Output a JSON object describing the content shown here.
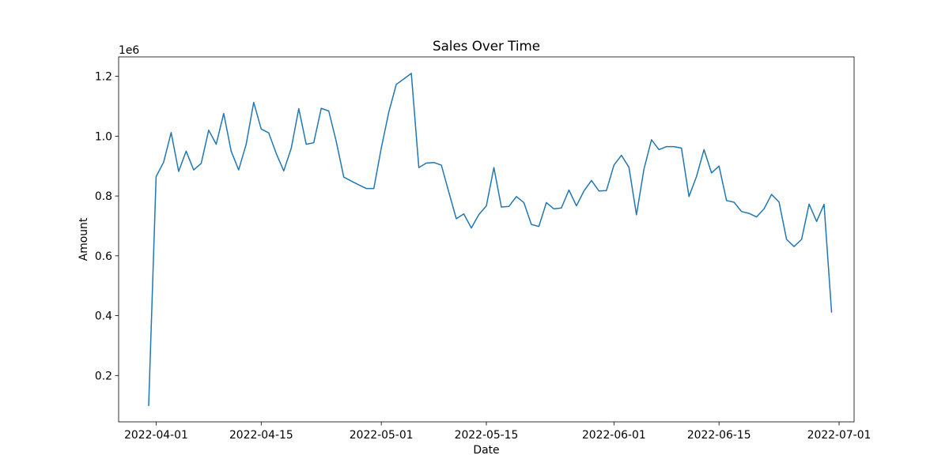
{
  "chart_data": {
    "type": "line",
    "title": "Sales Over Time",
    "xlabel": "Date",
    "ylabel": "Amount",
    "y_offset_text": "1e6",
    "y_scale_multiplier": 1000000,
    "xlim": [
      "2022-03-27",
      "2022-07-03"
    ],
    "ylim": [
      0.045,
      1.265
    ],
    "x_ticks": [
      "2022-04-01",
      "2022-04-15",
      "2022-05-01",
      "2022-05-15",
      "2022-06-01",
      "2022-06-15",
      "2022-07-01"
    ],
    "y_ticks": [
      "0.2",
      "0.4",
      "0.6",
      "0.8",
      "1.0",
      "1.2"
    ],
    "grid": false,
    "legend": "none",
    "color": "#1f77b4",
    "series": [
      {
        "x": [
          "2022-03-31",
          "2022-04-01",
          "2022-04-02",
          "2022-04-03",
          "2022-04-04",
          "2022-04-05",
          "2022-04-06",
          "2022-04-07",
          "2022-04-08",
          "2022-04-09",
          "2022-04-10",
          "2022-04-11",
          "2022-04-12",
          "2022-04-13",
          "2022-04-14",
          "2022-04-15",
          "2022-04-16",
          "2022-04-17",
          "2022-04-18",
          "2022-04-19",
          "2022-04-20",
          "2022-04-21",
          "2022-04-22",
          "2022-04-23",
          "2022-04-24",
          "2022-04-25",
          "2022-04-26",
          "2022-04-27",
          "2022-04-28",
          "2022-04-29",
          "2022-04-30",
          "2022-05-01",
          "2022-05-02",
          "2022-05-03",
          "2022-05-04",
          "2022-05-05",
          "2022-05-06",
          "2022-05-07",
          "2022-05-08",
          "2022-05-09",
          "2022-05-10",
          "2022-05-11",
          "2022-05-12",
          "2022-05-13",
          "2022-05-14",
          "2022-05-15",
          "2022-05-16",
          "2022-05-17",
          "2022-05-18",
          "2022-05-19",
          "2022-05-20",
          "2022-05-21",
          "2022-05-22",
          "2022-05-23",
          "2022-05-24",
          "2022-05-25",
          "2022-05-26",
          "2022-05-27",
          "2022-05-28",
          "2022-05-29",
          "2022-05-30",
          "2022-05-31",
          "2022-06-01",
          "2022-06-02",
          "2022-06-03",
          "2022-06-04",
          "2022-06-05",
          "2022-06-06",
          "2022-06-07",
          "2022-06-08",
          "2022-06-09",
          "2022-06-10",
          "2022-06-11",
          "2022-06-12",
          "2022-06-13",
          "2022-06-14",
          "2022-06-15",
          "2022-06-16",
          "2022-06-17",
          "2022-06-18",
          "2022-06-19",
          "2022-06-20",
          "2022-06-21",
          "2022-06-22",
          "2022-06-23",
          "2022-06-24",
          "2022-06-25",
          "2022-06-26",
          "2022-06-27",
          "2022-06-28",
          "2022-06-29",
          "2022-06-30"
        ],
        "y": [
          0.1,
          0.865,
          0.913,
          1.012,
          0.882,
          0.95,
          0.887,
          0.909,
          1.02,
          0.973,
          1.076,
          0.95,
          0.887,
          0.973,
          1.113,
          1.024,
          1.011,
          0.942,
          0.884,
          0.96,
          1.092,
          0.973,
          0.978,
          1.093,
          1.084,
          0.982,
          0.863,
          0.85,
          0.837,
          0.825,
          0.825,
          0.96,
          1.08,
          1.173,
          1.191,
          1.21,
          0.895,
          0.91,
          0.912,
          0.903,
          0.812,
          0.724,
          0.74,
          0.693,
          0.738,
          0.767,
          0.895,
          0.763,
          0.765,
          0.798,
          0.778,
          0.705,
          0.698,
          0.778,
          0.757,
          0.76,
          0.82,
          0.767,
          0.817,
          0.852,
          0.817,
          0.818,
          0.903,
          0.936,
          0.896,
          0.737,
          0.89,
          0.988,
          0.955,
          0.965,
          0.965,
          0.96,
          0.798,
          0.865,
          0.955,
          0.877,
          0.9,
          0.785,
          0.779,
          0.748,
          0.742,
          0.73,
          0.757,
          0.805,
          0.78,
          0.655,
          0.631,
          0.655,
          0.773,
          0.715,
          0.772,
          0.412
        ]
      }
    ]
  }
}
